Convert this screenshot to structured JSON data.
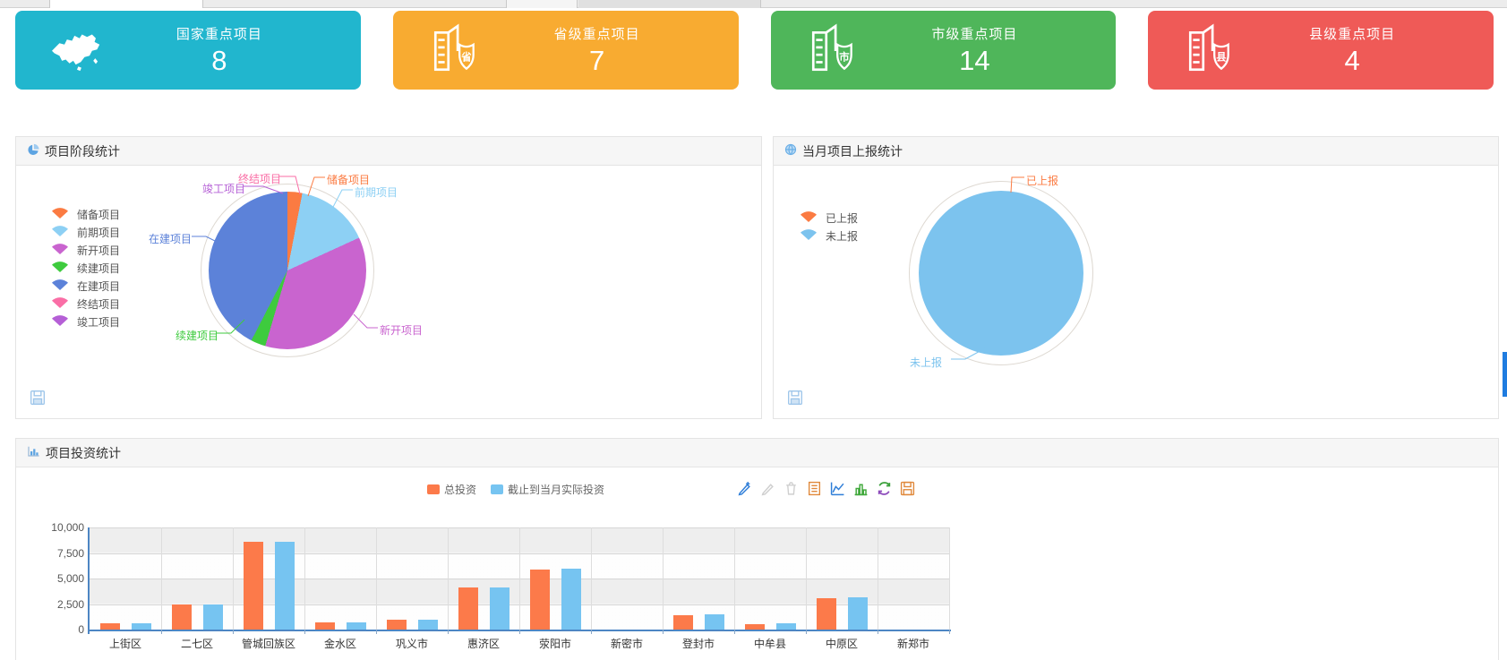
{
  "page": {
    "accent_scrollbar": "#1f7ce0"
  },
  "stat_cards": [
    {
      "id": "national",
      "label": "国家重点项目",
      "value": "8",
      "color": "#21b6ce",
      "icon": "china-map-icon",
      "badge": ""
    },
    {
      "id": "provincial",
      "label": "省级重点项目",
      "value": "7",
      "color": "#f8ab31",
      "icon": "building-shield-icon",
      "badge": "省"
    },
    {
      "id": "municipal",
      "label": "市级重点项目",
      "value": "14",
      "color": "#4fb65a",
      "icon": "building-shield-icon",
      "badge": "市"
    },
    {
      "id": "county",
      "label": "县级重点项目",
      "value": "4",
      "color": "#ef5a57",
      "icon": "building-shield-icon",
      "badge": "县"
    }
  ],
  "panels": {
    "stage": {
      "title": "项目阶段统计"
    },
    "report": {
      "title": "当月项目上报统计"
    },
    "invest": {
      "title": "项目投资统计"
    }
  },
  "chart_data": [
    {
      "id": "stage-pie",
      "type": "pie",
      "title": "项目阶段统计",
      "labels": [
        "储备项目",
        "前期项目",
        "新开项目",
        "续建项目",
        "在建项目",
        "终结项目",
        "竣工项目"
      ],
      "values": [
        1,
        5,
        12,
        1,
        14,
        0,
        0
      ],
      "colors": [
        "#fb7b42",
        "#8dd0f4",
        "#c964cf",
        "#3ecb3e",
        "#5c82d9",
        "#fa6ea6",
        "#b55fd6"
      ],
      "legend_position": "left",
      "callout_labels": true
    },
    {
      "id": "report-pie",
      "type": "pie",
      "title": "当月项目上报统计",
      "labels": [
        "已上报",
        "未上报"
      ],
      "values": [
        0,
        33
      ],
      "colors": [
        "#fb7b42",
        "#7cc3ee"
      ],
      "legend_position": "left",
      "callout_labels": true
    },
    {
      "id": "invest-bar",
      "type": "bar",
      "title": "项目投资统计",
      "categories": [
        "上街区",
        "二七区",
        "管城回族区",
        "金水区",
        "巩义市",
        "惠济区",
        "荥阳市",
        "新密市",
        "登封市",
        "中牟县",
        "中原区",
        "新郑市"
      ],
      "series": [
        {
          "name": "总投资",
          "color": "#fc7a4a",
          "values": [
            600,
            2500,
            8600,
            700,
            950,
            4100,
            5900,
            0,
            1400,
            550,
            3100,
            0
          ]
        },
        {
          "name": "截止到当月实际投资",
          "color": "#76c4f1",
          "values": [
            600,
            2500,
            8600,
            700,
            950,
            4100,
            5950,
            0,
            1450,
            600,
            3150,
            0
          ]
        }
      ],
      "ylim": [
        0,
        10000
      ],
      "yticks": [
        "0",
        "2,500",
        "5,000",
        "7,500",
        "10,000"
      ],
      "grid": true,
      "legend_position": "top-center"
    }
  ],
  "toolbox_icons": [
    "edit-pencil-add-icon",
    "edit-pencil-icon",
    "delete-trash-icon",
    "data-view-icon",
    "line-chart-icon",
    "bar-chart-icon",
    "restore-icon",
    "save-image-icon"
  ]
}
